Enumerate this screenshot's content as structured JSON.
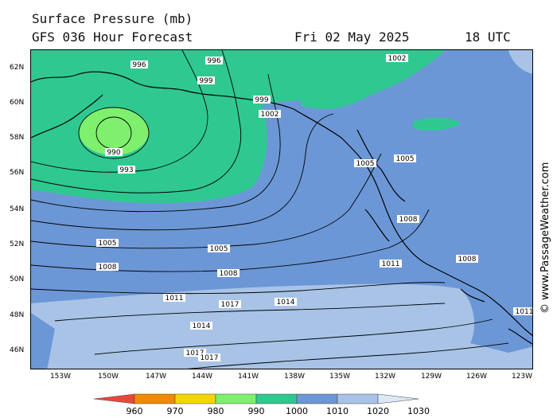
{
  "header": {
    "title": "Surface Pressure (mb)",
    "forecast": "GFS 036 Hour Forecast",
    "date": "Fri 02 May 2025",
    "time": "18 UTC"
  },
  "credit": "© www.PassageWeather.com",
  "lat_labels": [
    "62N",
    "60N",
    "58N",
    "56N",
    "54N",
    "52N",
    "50N",
    "48N",
    "46N"
  ],
  "lon_labels": [
    "153W",
    "150W",
    "147W",
    "144W",
    "141W",
    "138W",
    "135W",
    "132W",
    "129W",
    "126W",
    "123W"
  ],
  "isobar_labels": [
    "990",
    "993",
    "996",
    "999",
    "1002",
    "1005",
    "1008",
    "1011",
    "1014",
    "1017"
  ],
  "colorbar": {
    "ticks": [
      "960",
      "970",
      "980",
      "990",
      "1000",
      "1010",
      "1020",
      "1030"
    ],
    "colors": [
      "#e8483c",
      "#f08a00",
      "#f2d600",
      "#7ef06e",
      "#2fc890",
      "#6c97d6",
      "#a8c3e6",
      "#dde8f6"
    ]
  }
}
